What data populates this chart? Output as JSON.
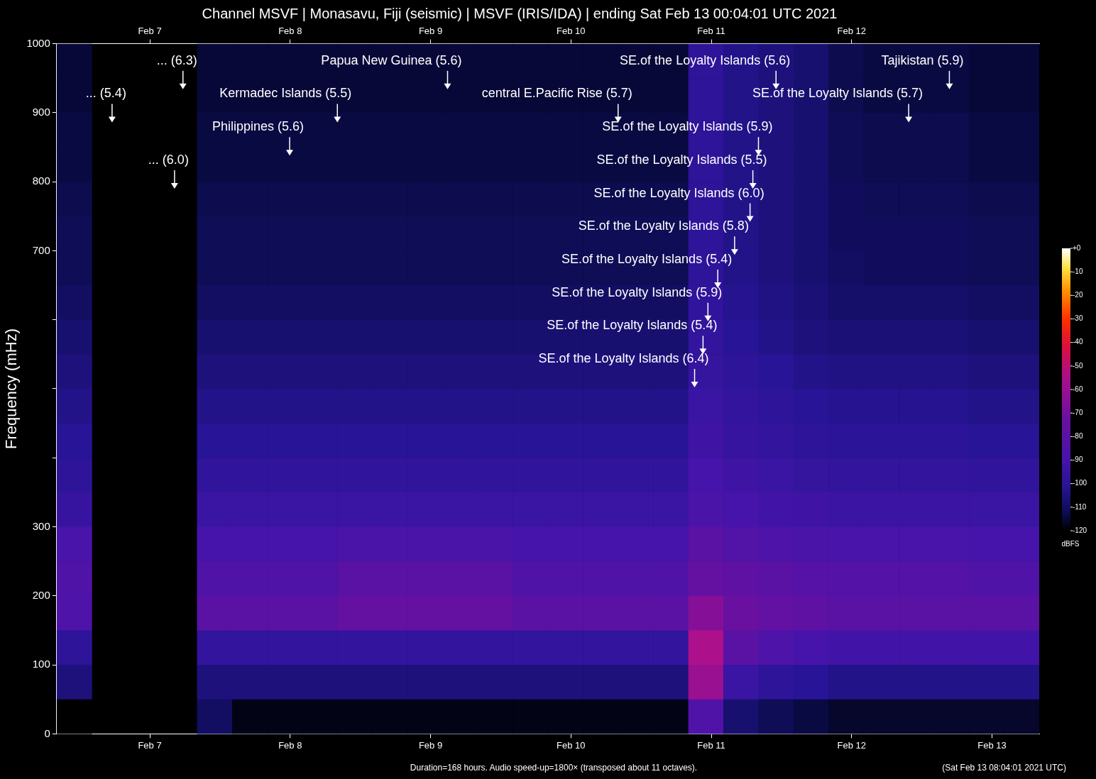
{
  "chart_data": {
    "type": "heatmap",
    "title": "Channel MSVF | Monasavu, Fiji (seismic) | MSVF (IRIS/IDA) | ending Sat Feb 13 00:04:01 UTC 2021",
    "ylabel": "Frequency (mHz)",
    "clabel": "dBFS",
    "x": [
      "2021-02-06T11:04",
      "2021-02-06T17:04",
      "2021-02-06T23:04",
      "2021-02-07T05:04",
      "2021-02-07T11:04",
      "2021-02-07T17:04",
      "2021-02-07T23:04",
      "2021-02-08T05:04",
      "2021-02-08T11:04",
      "2021-02-08T17:04",
      "2021-02-08T23:04",
      "2021-02-09T05:04",
      "2021-02-09T11:04",
      "2021-02-09T17:04",
      "2021-02-09T23:04",
      "2021-02-10T05:04",
      "2021-02-10T11:04",
      "2021-02-10T17:04",
      "2021-02-10T23:04",
      "2021-02-11T05:04",
      "2021-02-11T11:04",
      "2021-02-11T17:04",
      "2021-02-11T23:04",
      "2021-02-12T05:04",
      "2021-02-12T11:04",
      "2021-02-12T17:04",
      "2021-02-12T23:04",
      "2021-02-13T05:04"
    ],
    "xlim": [
      "2021-02-06T08:04",
      "2021-02-13T08:04"
    ],
    "xticks": [
      {
        "value": "2021-02-07",
        "label": "Feb 7"
      },
      {
        "value": "2021-02-08",
        "label": "Feb 8"
      },
      {
        "value": "2021-02-09",
        "label": "Feb 9"
      },
      {
        "value": "2021-02-10",
        "label": "Feb 10"
      },
      {
        "value": "2021-02-11",
        "label": "Feb 11"
      },
      {
        "value": "2021-02-12",
        "label": "Feb 12"
      },
      {
        "value": "2021-02-13",
        "label": "Feb 13"
      }
    ],
    "x2lim": [
      "2021-02-06T08:04",
      "2021-02-13T08:04"
    ],
    "x2ticks": [
      {
        "value": "2021-02-07",
        "label": "Feb 7"
      },
      {
        "value": "2021-02-08",
        "label": "Feb 8"
      },
      {
        "value": "2021-02-09",
        "label": "Feb 9"
      },
      {
        "value": "2021-02-10",
        "label": "Feb 10"
      },
      {
        "value": "2021-02-11",
        "label": "Feb 11"
      },
      {
        "value": "2021-02-12",
        "label": "Feb 12"
      }
    ],
    "ylim": [
      0,
      1000
    ],
    "yticks": [
      0,
      100,
      200,
      300,
      {
        "value": 400,
        "label": null
      },
      {
        "value": 500,
        "label": null
      },
      {
        "value": 600,
        "label": null
      },
      700,
      800,
      900,
      1000
    ],
    "clim": [
      -120,
      0
    ],
    "cticks": [
      {
        "value": 0,
        "label": "+0"
      },
      -10,
      -20,
      -30,
      -40,
      -50,
      -60,
      -70,
      -80,
      -90,
      -100,
      -110,
      -120
    ],
    "cells": [
      [
        -115,
        null,
        null,
        null,
        -115,
        -115,
        -115,
        -115,
        -115,
        -115,
        -115,
        -115,
        -115,
        -115,
        -115,
        -115,
        -115,
        -115,
        -100,
        -104,
        -106,
        -108,
        -113,
        -114,
        -114,
        -114,
        -115,
        -115
      ],
      [
        -115,
        null,
        null,
        null,
        -115,
        -115,
        -115,
        -115,
        -115,
        -115,
        -115,
        -115,
        -115,
        -115,
        -115,
        -115,
        -115,
        -115,
        -100,
        -104,
        -106,
        -108,
        -113,
        -114,
        -114,
        -114,
        -115,
        -115
      ],
      [
        -114,
        null,
        null,
        null,
        -114,
        -114,
        -114,
        -114,
        -114,
        -114,
        -114,
        -114,
        -114,
        -114,
        -114,
        -114,
        -114,
        -114,
        -100,
        -104,
        -106,
        -108,
        -112,
        -113,
        -113,
        -113,
        -114,
        -114
      ],
      [
        -114,
        null,
        null,
        null,
        -114,
        -114,
        -114,
        -114,
        -114,
        -114,
        -114,
        -114,
        -114,
        -114,
        -114,
        -114,
        -114,
        -114,
        -100,
        -104,
        -106,
        -108,
        -112,
        -113,
        -113,
        -113,
        -114,
        -114
      ],
      [
        -113,
        null,
        null,
        null,
        -113,
        -113,
        -113,
        -113,
        -113,
        -113,
        -113,
        -113,
        -113,
        -113,
        -113,
        -113,
        -113,
        -113,
        -100,
        -104,
        -106,
        -108,
        -111,
        -112,
        -112,
        -112,
        -113,
        -113
      ],
      [
        -112,
        null,
        null,
        null,
        -112,
        -112,
        -112,
        -112,
        -112,
        -112,
        -112,
        -112,
        -112,
        -112,
        -112,
        -112,
        -112,
        -112,
        -100,
        -104,
        -106,
        -108,
        -111,
        -111,
        -111,
        -111,
        -112,
        -112
      ],
      [
        -112,
        null,
        null,
        null,
        -112,
        -112,
        -112,
        -112,
        -112,
        -112,
        -112,
        -112,
        -112,
        -112,
        -112,
        -112,
        -112,
        -112,
        -100,
        -104,
        -106,
        -108,
        -110,
        -111,
        -111,
        -111,
        -112,
        -112
      ],
      [
        -110,
        null,
        null,
        null,
        -110,
        -110,
        -110,
        -110,
        -110,
        -110,
        -110,
        -110,
        -110,
        -110,
        -110,
        -110,
        -110,
        -110,
        -99,
        -103,
        -105,
        -107,
        -109,
        -109,
        -109,
        -109,
        -110,
        -110
      ],
      [
        -108,
        null,
        null,
        null,
        -108,
        -108,
        -108,
        -108,
        -108,
        -108,
        -108,
        -108,
        -108,
        -108,
        -108,
        -108,
        -108,
        -108,
        -98,
        -102,
        -104,
        -106,
        -107,
        -107,
        -107,
        -107,
        -108,
        -108
      ],
      [
        -106,
        null,
        null,
        null,
        -106,
        -106,
        -106,
        -106,
        -106,
        -106,
        -106,
        -106,
        -106,
        -106,
        -106,
        -106,
        -106,
        -106,
        -97,
        -100,
        -102,
        -104,
        -105,
        -105,
        -105,
        -105,
        -106,
        -106
      ],
      [
        -104,
        null,
        null,
        null,
        -104,
        -104,
        -104,
        -104,
        -104,
        -104,
        -104,
        -104,
        -104,
        -104,
        -104,
        -104,
        -104,
        -104,
        -95,
        -98,
        -100,
        -102,
        -103,
        -103,
        -103,
        -103,
        -104,
        -104
      ],
      [
        -102,
        null,
        null,
        null,
        -102,
        -102,
        -102,
        -102,
        -102,
        -102,
        -102,
        -102,
        -102,
        -102,
        -102,
        -102,
        -102,
        -102,
        -93,
        -96,
        -98,
        -100,
        -101,
        -101,
        -101,
        -101,
        -102,
        -102
      ],
      [
        -100,
        null,
        null,
        null,
        -99,
        -99,
        -99,
        -99,
        -99,
        -99,
        -99,
        -99,
        -99,
        -99,
        -99,
        -99,
        -99,
        -99,
        -90,
        -93,
        -95,
        -97,
        -98,
        -98,
        -98,
        -98,
        -99,
        -99
      ],
      [
        -96,
        null,
        null,
        null,
        -95,
        -95,
        -95,
        -95,
        -95,
        -95,
        -95,
        -95,
        -95,
        -95,
        -95,
        -95,
        -95,
        -95,
        -88,
        -90,
        -92,
        -93,
        -94,
        -94,
        -94,
        -94,
        -95,
        -95
      ],
      [
        -89,
        null,
        null,
        null,
        -90,
        -90,
        -90,
        -90,
        -88,
        -88,
        -88,
        -88,
        -88,
        -90,
        -90,
        -90,
        -90,
        -90,
        -80,
        -84,
        -86,
        -88,
        -89,
        -89,
        -89,
        -89,
        -90,
        -90
      ],
      [
        -85,
        null,
        null,
        null,
        -85,
        -85,
        -85,
        -85,
        -80,
        -80,
        -80,
        -80,
        -80,
        -85,
        -85,
        -85,
        -85,
        -85,
        -75,
        -78,
        -80,
        -82,
        -83,
        -83,
        -83,
        -83,
        -85,
        -85
      ],
      [
        -86,
        null,
        null,
        null,
        -80,
        -80,
        -80,
        -80,
        -75,
        -75,
        -75,
        -75,
        -75,
        -80,
        -80,
        -80,
        -80,
        -80,
        -65,
        -72,
        -76,
        -78,
        -80,
        -80,
        -80,
        -80,
        -80,
        -80
      ],
      [
        -100,
        null,
        null,
        null,
        -98,
        -98,
        -98,
        -98,
        -98,
        -98,
        -98,
        -98,
        -98,
        -98,
        -98,
        -98,
        -98,
        -98,
        -55,
        -80,
        -86,
        -90,
        -92,
        -92,
        -92,
        -92,
        -92,
        -92
      ],
      [
        -106,
        null,
        null,
        null,
        -106,
        -106,
        -106,
        -106,
        -106,
        -106,
        -106,
        -106,
        -106,
        -106,
        -106,
        -106,
        -106,
        -106,
        -60,
        -95,
        -100,
        -102,
        -104,
        -104,
        -104,
        -104,
        -104,
        -104
      ],
      [
        -120,
        null,
        null,
        null,
        -110,
        -118,
        -118,
        -118,
        -118,
        -118,
        -118,
        -118,
        -118,
        -118,
        -118,
        -118,
        -118,
        -118,
        -85,
        -108,
        -112,
        -114,
        -116,
        -116,
        -116,
        -116,
        -116,
        -116
      ]
    ],
    "annotations": [
      "... (5.4)",
      "... (6.3)",
      "... (6.0)",
      "Kermadec Islands (5.5)",
      "Philippines (5.6)",
      "Papua New Guinea (5.6)",
      "central E.Pacific Rise (5.7)",
      "SE.of the Loyalty Islands (5.6)",
      "SE.of the Loyalty Islands (5.7)",
      "Tajikistan (5.9)",
      "SE.of the Loyalty Islands (5.9)",
      "SE.of the Loyalty Islands (5.5)",
      "SE.of the Loyalty Islands (6.0)",
      "SE.of the Loyalty Islands (5.8)",
      "SE.of the Loyalty Islands (5.4)",
      "SE.of the Loyalty Islands (5.9)",
      "SE.of the Loyalty Islands (5.4)",
      "SE.of the Loyalty Islands (6.4)",
      "Duration=168 hours. Audio speed-up=1800× (transposed about 11 octaves).",
      "(Sat Feb 13 08:04:01 2021 UTC)"
    ]
  }
}
